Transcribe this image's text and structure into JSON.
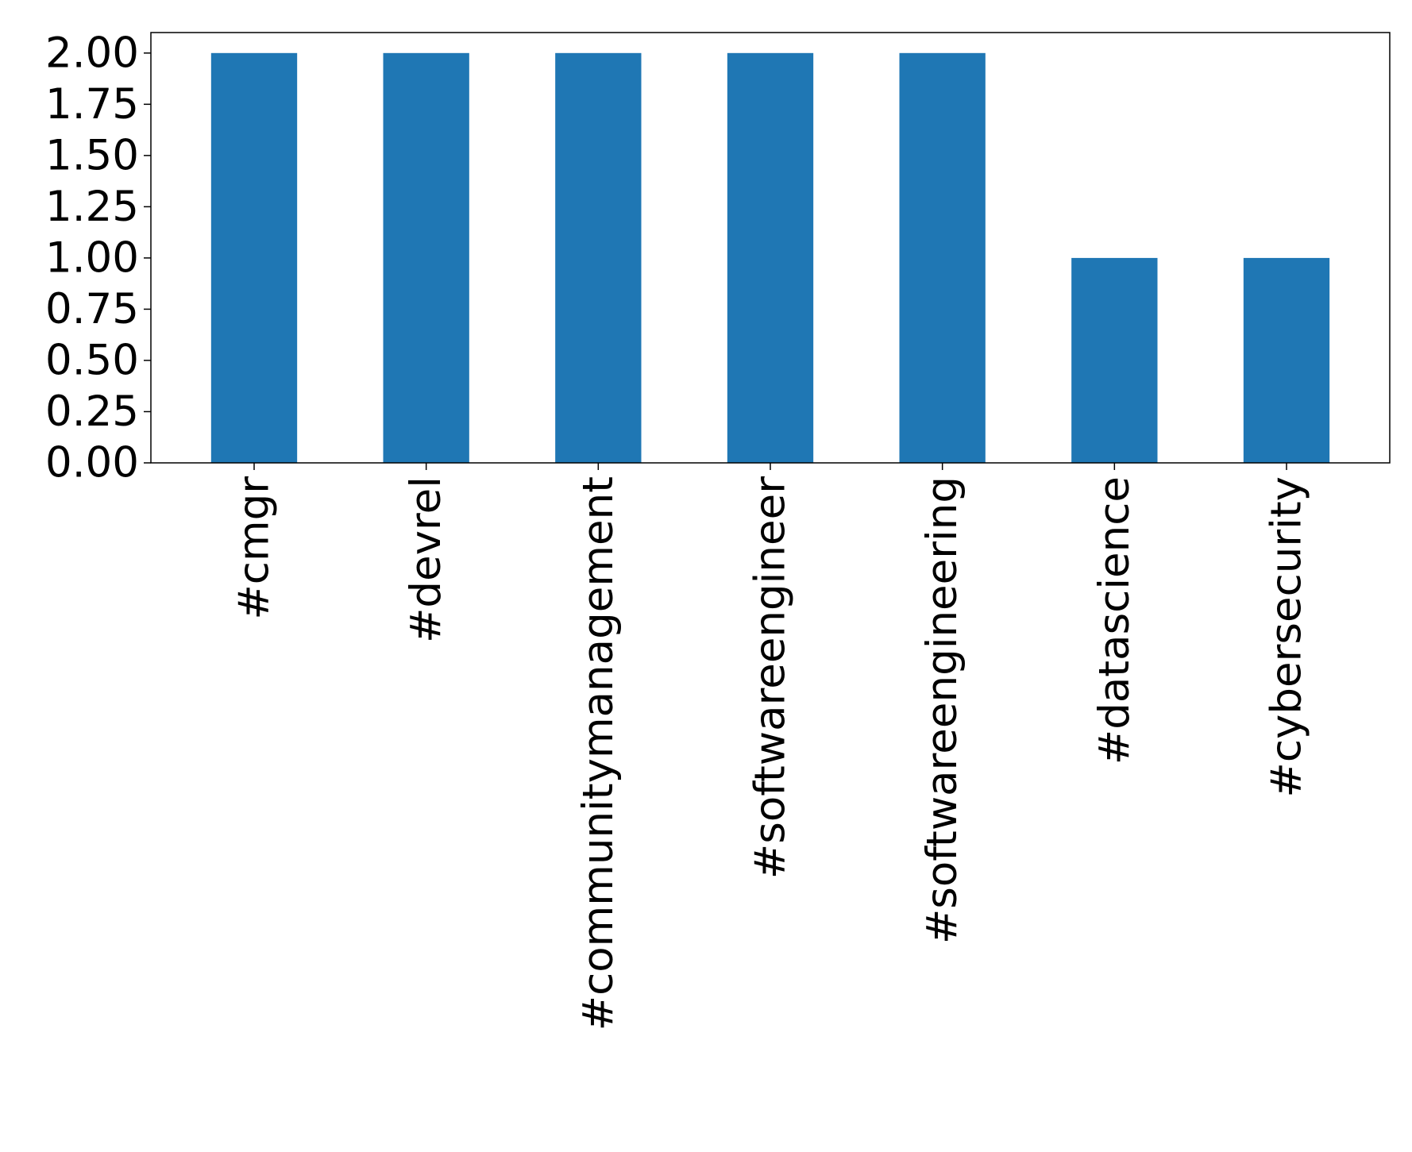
{
  "chart_data": {
    "type": "bar",
    "title": "",
    "xlabel": "",
    "ylabel": "",
    "categories": [
      "#cmgr",
      "#devrel",
      "#communitymanagement",
      "#softwareengineer",
      "#softwareengineering",
      "#datascience",
      "#cybersecurity"
    ],
    "values": [
      2,
      2,
      2,
      2,
      2,
      1,
      1
    ],
    "ylim": [
      0,
      2.1
    ],
    "yticks": [
      "0.00",
      "0.25",
      "0.50",
      "0.75",
      "1.00",
      "1.25",
      "1.50",
      "1.75",
      "2.00"
    ],
    "grid": false,
    "legend": "none",
    "bar_color": "#1f77b4"
  }
}
